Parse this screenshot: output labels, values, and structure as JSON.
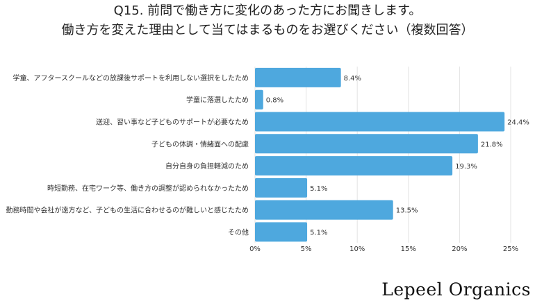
{
  "chart_data": {
    "type": "bar",
    "orientation": "horizontal",
    "title": [
      "Q15. 前問で働き方に変化のあった方にお聞きします。",
      "働き方を変えた理由として当てはまるものをお選びください（複数回答）"
    ],
    "categories": [
      "学童、アフタースクールなどの放課後サポートを利用しない選択をしたため",
      "学童に落選したため",
      "送迎、習い事など子どものサポートが必要なため",
      "子どもの体調・情緒面への配慮",
      "自分自身の負担軽減のため",
      "時短勤務、在宅ワーク等、働き方の調整が認められなかったため",
      "勤務時間や会社が遠方など、子どもの生活に合わせるのが難しいと感じたため",
      "その他"
    ],
    "values": [
      8.4,
      0.8,
      24.4,
      21.8,
      19.3,
      5.1,
      13.5,
      5.1
    ],
    "data_labels": [
      "8.4%",
      "0.8%",
      "24.4%",
      "21.8%",
      "19.3%",
      "5.1%",
      "13.5%",
      "5.1%"
    ],
    "xlim": [
      0,
      27.5
    ],
    "x_ticks": [
      0,
      5,
      10,
      15,
      20,
      25
    ],
    "x_tick_labels": [
      "0%",
      "5%",
      "10%",
      "15%",
      "20%",
      "25%"
    ],
    "grid": true,
    "bar_color": "#4ea8de"
  },
  "brand": "Lepeel Organics"
}
